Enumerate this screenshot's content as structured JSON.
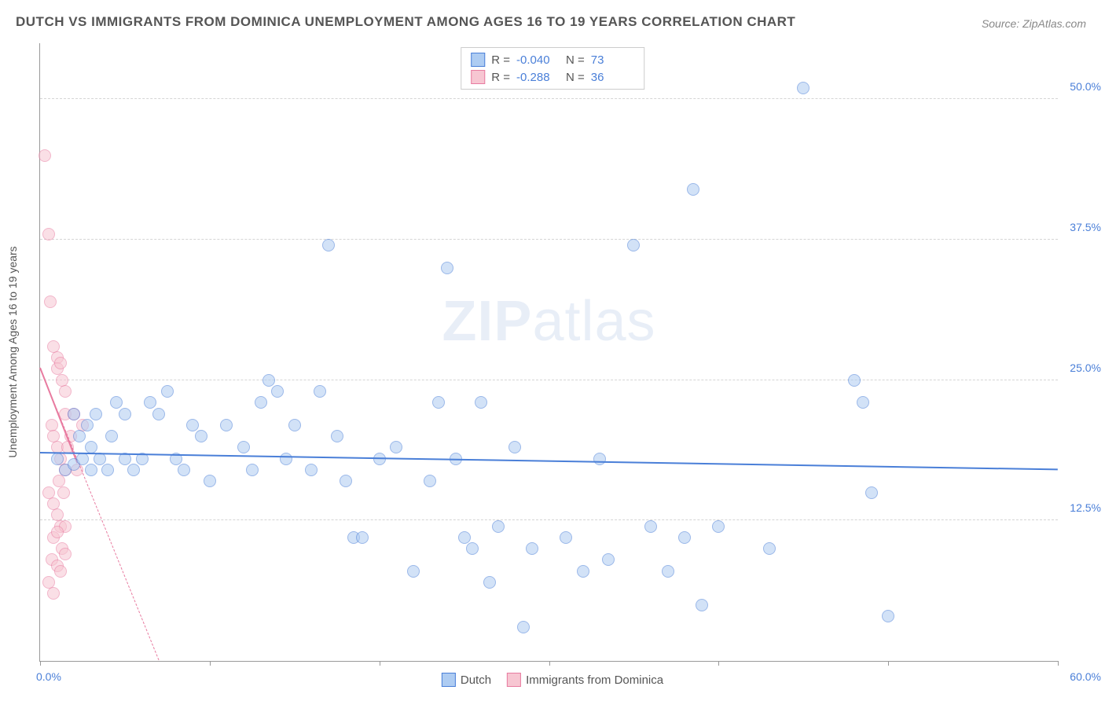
{
  "title": "DUTCH VS IMMIGRANTS FROM DOMINICA UNEMPLOYMENT AMONG AGES 16 TO 19 YEARS CORRELATION CHART",
  "source": "Source: ZipAtlas.com",
  "watermark_bold": "ZIP",
  "watermark_rest": "atlas",
  "y_axis_label": "Unemployment Among Ages 16 to 19 years",
  "chart": {
    "type": "scatter",
    "xlim": [
      0,
      60
    ],
    "ylim": [
      0,
      55
    ],
    "y_ticks": [
      12.5,
      25.0,
      37.5,
      50.0
    ],
    "y_tick_labels": [
      "12.5%",
      "25.0%",
      "37.5%",
      "50.0%"
    ],
    "x_ticks": [
      0,
      10,
      20,
      30,
      40,
      50,
      60
    ],
    "x_label_min": "0.0%",
    "x_label_max": "60.0%",
    "background_color": "#ffffff",
    "grid_color": "#d5d5d5",
    "point_radius": 8,
    "point_opacity": 0.55
  },
  "series": [
    {
      "key": "dutch",
      "name": "Dutch",
      "color_fill": "#aeccf2",
      "color_stroke": "#4a7fd8",
      "R": "-0.040",
      "N": "73",
      "trend": {
        "x1": 0,
        "y1": 18.5,
        "x2": 60,
        "y2": 17.0,
        "width": 2.5,
        "dashed": false
      },
      "points": [
        [
          1,
          18
        ],
        [
          1.5,
          17
        ],
        [
          2,
          17.5
        ],
        [
          2,
          22
        ],
        [
          2.3,
          20
        ],
        [
          2.5,
          18
        ],
        [
          2.8,
          21
        ],
        [
          3,
          17
        ],
        [
          3,
          19
        ],
        [
          3.3,
          22
        ],
        [
          3.5,
          18
        ],
        [
          4,
          17
        ],
        [
          4.2,
          20
        ],
        [
          4.5,
          23
        ],
        [
          5,
          22
        ],
        [
          5,
          18
        ],
        [
          5.5,
          17
        ],
        [
          6,
          18
        ],
        [
          6.5,
          23
        ],
        [
          7,
          22
        ],
        [
          7.5,
          24
        ],
        [
          8,
          18
        ],
        [
          8.5,
          17
        ],
        [
          9,
          21
        ],
        [
          9.5,
          20
        ],
        [
          10,
          16
        ],
        [
          11,
          21
        ],
        [
          12,
          19
        ],
        [
          12.5,
          17
        ],
        [
          13,
          23
        ],
        [
          13.5,
          25
        ],
        [
          14,
          24
        ],
        [
          14.5,
          18
        ],
        [
          15,
          21
        ],
        [
          16,
          17
        ],
        [
          16.5,
          24
        ],
        [
          17,
          37
        ],
        [
          17.5,
          20
        ],
        [
          18,
          16
        ],
        [
          18.5,
          11
        ],
        [
          19,
          11
        ],
        [
          20,
          18
        ],
        [
          21,
          19
        ],
        [
          22,
          8
        ],
        [
          23,
          16
        ],
        [
          23.5,
          23
        ],
        [
          24,
          35
        ],
        [
          24.5,
          18
        ],
        [
          25,
          11
        ],
        [
          25.5,
          10
        ],
        [
          26,
          23
        ],
        [
          26.5,
          7
        ],
        [
          27,
          12
        ],
        [
          28,
          19
        ],
        [
          28.5,
          3
        ],
        [
          29,
          10
        ],
        [
          31,
          11
        ],
        [
          32,
          8
        ],
        [
          33,
          18
        ],
        [
          33.5,
          9
        ],
        [
          35,
          37
        ],
        [
          36,
          12
        ],
        [
          37,
          8
        ],
        [
          38,
          11
        ],
        [
          38.5,
          42
        ],
        [
          39,
          5
        ],
        [
          40,
          12
        ],
        [
          43,
          10
        ],
        [
          45,
          51
        ],
        [
          48,
          25
        ],
        [
          48.5,
          23
        ],
        [
          49,
          15
        ],
        [
          50,
          4
        ]
      ]
    },
    {
      "key": "dominica",
      "name": "Immigrants from Dominica",
      "color_fill": "#f7c6d2",
      "color_stroke": "#e87ba0",
      "R": "-0.288",
      "N": "36",
      "trend": {
        "x1": 0,
        "y1": 26,
        "x2": 7,
        "y2": 0,
        "width": 1.5,
        "dashed": true
      },
      "trend_solid": {
        "x1": 0,
        "y1": 26,
        "x2": 2.2,
        "y2": 17.5,
        "width": 2.5,
        "dashed": false
      },
      "points": [
        [
          0.3,
          45
        ],
        [
          0.5,
          38
        ],
        [
          0.6,
          32
        ],
        [
          0.8,
          28
        ],
        [
          1,
          27
        ],
        [
          1,
          26
        ],
        [
          1.2,
          26.5
        ],
        [
          1.3,
          25
        ],
        [
          1.5,
          24
        ],
        [
          1.5,
          22
        ],
        [
          0.7,
          21
        ],
        [
          0.8,
          20
        ],
        [
          1,
          19
        ],
        [
          1.2,
          18
        ],
        [
          1.5,
          17
        ],
        [
          0.5,
          15
        ],
        [
          0.8,
          14
        ],
        [
          1,
          13
        ],
        [
          1.2,
          12
        ],
        [
          1.5,
          12
        ],
        [
          0.8,
          11
        ],
        [
          1,
          11.5
        ],
        [
          1.3,
          10
        ],
        [
          1.5,
          9.5
        ],
        [
          0.7,
          9
        ],
        [
          1,
          8.5
        ],
        [
          1.2,
          8
        ],
        [
          0.5,
          7
        ],
        [
          0.8,
          6
        ],
        [
          1.1,
          16
        ],
        [
          1.4,
          15
        ],
        [
          1.6,
          19
        ],
        [
          1.8,
          20
        ],
        [
          2,
          22
        ],
        [
          2.2,
          17
        ],
        [
          2.5,
          21
        ]
      ]
    }
  ],
  "legend_labels": {
    "R": "R =",
    "N": "N ="
  }
}
